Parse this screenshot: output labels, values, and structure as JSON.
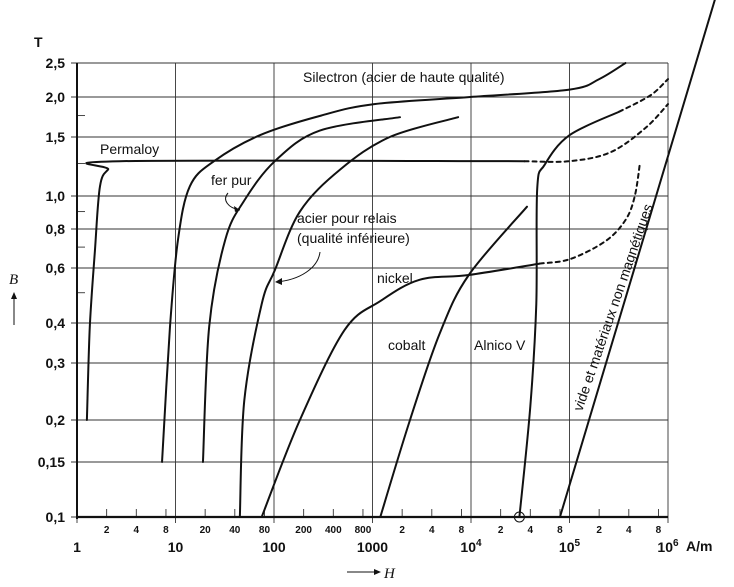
{
  "chart_data": {
    "type": "line",
    "title": "",
    "xlabel": "H",
    "xunit": "A/m",
    "ylabel": "B",
    "yunit": "T",
    "xscale": "log",
    "yscale": "log",
    "xlim": [
      1,
      1000000
    ],
    "ylim": [
      0.1,
      2.5
    ],
    "grid": true,
    "x_major_ticks": [
      {
        "value": 1,
        "label": "1"
      },
      {
        "value": 10,
        "label": "10"
      },
      {
        "value": 100,
        "label": "100"
      },
      {
        "value": 1000,
        "label": "1000"
      },
      {
        "value": 10000,
        "label": "10",
        "exp": "4"
      },
      {
        "value": 100000,
        "label": "10",
        "exp": "5"
      },
      {
        "value": 1000000,
        "label": "10",
        "exp": "6"
      }
    ],
    "x_minor_ticks": [
      {
        "value": 2,
        "label": "2"
      },
      {
        "value": 4,
        "label": "4"
      },
      {
        "value": 8,
        "label": "8"
      },
      {
        "value": 20,
        "label": "20"
      },
      {
        "value": 40,
        "label": "40"
      },
      {
        "value": 80,
        "label": "80"
      },
      {
        "value": 200,
        "label": "200"
      },
      {
        "value": 400,
        "label": "400"
      },
      {
        "value": 800,
        "label": "800"
      },
      {
        "value": 2000,
        "label": "2"
      },
      {
        "value": 4000,
        "label": "4"
      },
      {
        "value": 8000,
        "label": "8"
      },
      {
        "value": 20000,
        "label": "2"
      },
      {
        "value": 40000,
        "label": "4"
      },
      {
        "value": 80000,
        "label": "8"
      },
      {
        "value": 200000,
        "label": "2"
      },
      {
        "value": 400000,
        "label": "4"
      },
      {
        "value": 800000,
        "label": "8"
      }
    ],
    "y_ticks": [
      {
        "value": 0.1,
        "label": "0,1"
      },
      {
        "value": 0.15,
        "label": "0,15"
      },
      {
        "value": 0.2,
        "label": "0,2"
      },
      {
        "value": 0.3,
        "label": "0,3"
      },
      {
        "value": 0.4,
        "label": "0,4"
      },
      {
        "value": 0.6,
        "label": "0,6"
      },
      {
        "value": 0.8,
        "label": "0,8"
      },
      {
        "value": 1.0,
        "label": "1,0"
      },
      {
        "value": 1.5,
        "label": "1,5"
      },
      {
        "value": 2.0,
        "label": "2,0"
      },
      {
        "value": 2.5,
        "label": "2,5"
      }
    ],
    "y_minor_ticks": [
      0.5,
      0.7,
      0.9,
      1.25,
      1.75
    ],
    "series": [
      {
        "name": "Permaloy",
        "style": "solid",
        "points": [
          [
            1.26,
            0.2
          ],
          [
            1.35,
            0.39
          ],
          [
            1.52,
            0.68
          ],
          [
            1.71,
            1.07
          ],
          [
            2.07,
            1.2
          ],
          [
            2.7,
            1.27
          ],
          [
            35000,
            1.27
          ]
        ]
      },
      {
        "name": "Permaloy (extrapolated)",
        "style": "dashed",
        "points": [
          [
            35000,
            1.27
          ],
          [
            100000,
            1.27
          ],
          [
            260000,
            1.35
          ],
          [
            590000,
            1.6
          ],
          [
            1000000,
            1.9
          ]
        ]
      },
      {
        "name": "Silectron (acier de haute qualité)",
        "style": "solid",
        "points": [
          [
            7.3,
            0.15
          ],
          [
            8.8,
            0.39
          ],
          [
            10.6,
            0.74
          ],
          [
            14,
            1.07
          ],
          [
            24.6,
            1.27
          ],
          [
            72,
            1.52
          ],
          [
            300,
            1.75
          ],
          [
            1040,
            1.9
          ],
          [
            9800,
            2.0
          ],
          [
            100000,
            2.1
          ],
          [
            200000,
            2.25
          ],
          [
            370000,
            2.5
          ]
        ]
      },
      {
        "name": "fer pur",
        "style": "solid",
        "points": [
          [
            19,
            0.15
          ],
          [
            22,
            0.39
          ],
          [
            32,
            0.74
          ],
          [
            50,
            0.97
          ],
          [
            102,
            1.27
          ],
          [
            290,
            1.57
          ],
          [
            1900,
            1.73
          ]
        ]
      },
      {
        "name": "acier pour relais (qualité inférieure)",
        "style": "solid",
        "points": [
          [
            45,
            0.1
          ],
          [
            50,
            0.23
          ],
          [
            75,
            0.46
          ],
          [
            102,
            0.59
          ],
          [
            183,
            0.9
          ],
          [
            470,
            1.2
          ],
          [
            1500,
            1.5
          ],
          [
            7400,
            1.73
          ]
        ]
      },
      {
        "name": "nickel",
        "style": "solid",
        "points": [
          [
            75,
            0.1
          ],
          [
            183,
            0.2
          ],
          [
            520,
            0.38
          ],
          [
            1200,
            0.47
          ],
          [
            3000,
            0.55
          ],
          [
            9500,
            0.57
          ],
          [
            50000,
            0.62
          ]
        ]
      },
      {
        "name": "nickel (extrapolated)",
        "style": "dashed",
        "points": [
          [
            50000,
            0.62
          ],
          [
            100000,
            0.64
          ],
          [
            230000,
            0.73
          ],
          [
            370000,
            0.85
          ],
          [
            460000,
            1.0
          ],
          [
            520000,
            1.26
          ]
        ]
      },
      {
        "name": "cobalt",
        "style": "solid",
        "points": [
          [
            1200,
            0.1
          ],
          [
            2400,
            0.2
          ],
          [
            4800,
            0.37
          ],
          [
            9500,
            0.57
          ],
          [
            37000,
            0.93
          ]
        ]
      },
      {
        "name": "Alnico V",
        "style": "solid",
        "points": [
          [
            31000,
            0.1
          ],
          [
            40000,
            0.22
          ],
          [
            46000,
            0.46
          ],
          [
            47000,
            1.05
          ],
          [
            56000,
            1.24
          ],
          [
            100000,
            1.52
          ],
          [
            320000,
            1.8
          ]
        ]
      },
      {
        "name": "Alnico V (extrapolated)",
        "style": "dashed",
        "points": [
          [
            320000,
            1.8
          ],
          [
            660000,
            2.02
          ],
          [
            1000000,
            2.25
          ]
        ]
      },
      {
        "name": "vide et matériaux non magnétiques",
        "style": "solid",
        "points": [
          [
            80000,
            0.1
          ],
          [
            3400000,
            4.27
          ]
        ]
      }
    ],
    "markers": [
      {
        "name": "circle",
        "x": 31000,
        "y": 0.1
      }
    ],
    "annotations": {
      "silectron": "Silectron (acier de haute qualité)",
      "permaloy": "Permaloy",
      "fer_pur": "fer pur",
      "acier_line1": "acier pour relais",
      "acier_line2": "(qualité inférieure)",
      "nickel": "nickel",
      "cobalt": "cobalt",
      "alnico": "Alnico V",
      "vide": "vide et matériaux non magnétiques"
    },
    "axis_text": {
      "y_unit": "T",
      "y_symbol": "B",
      "x_symbol": "H",
      "x_unit": "A/m"
    }
  }
}
